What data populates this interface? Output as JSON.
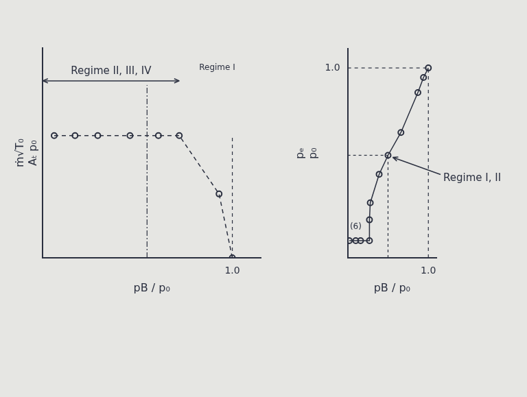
{
  "chart_data": [
    {
      "type": "line",
      "x_label": "pB / p₀",
      "y_label": [
        "ṁ√T₀",
        "Aₜ p₀"
      ],
      "x": [
        0.06,
        0.17,
        0.29,
        0.46,
        0.61,
        0.72,
        0.93,
        1.0
      ],
      "values": [
        0.67,
        0.67,
        0.67,
        0.67,
        0.67,
        0.67,
        0.35,
        0.0
      ],
      "color": "#2b3040",
      "marker": "circle",
      "line_style": "dashed",
      "xlim": [
        0,
        1.15
      ],
      "ylim": [
        0,
        1.15
      ],
      "xticks": [
        {
          "value": 1,
          "label": "1.0"
        }
      ],
      "yticks": [],
      "tick_labels": "x",
      "grid": false,
      "boundary_x": 0.55,
      "annotations": [
        {
          "text": "Regime II, III, IV",
          "span": [
            0,
            0.72
          ],
          "y": 0.97
        },
        {
          "text": "Regime I",
          "x": 0.92,
          "y": 1.02
        }
      ]
    },
    {
      "type": "line",
      "x_label": "pB / p₀",
      "y_label": [
        "pₑ",
        "p₀"
      ],
      "x": [
        0.02,
        0.1,
        0.16,
        0.27,
        0.27,
        0.28,
        0.39,
        0.5,
        0.66,
        0.87,
        0.94,
        1.0
      ],
      "values": [
        0.09,
        0.09,
        0.09,
        0.09,
        0.2,
        0.29,
        0.44,
        0.54,
        0.66,
        0.87,
        0.95,
        1.0
      ],
      "color": "#2b3040",
      "marker": "circle",
      "line_style": "solid",
      "xlim": [
        0,
        1.1
      ],
      "ylim": [
        0,
        1.1
      ],
      "xticks": [
        {
          "value": 1,
          "label": "1.0"
        }
      ],
      "yticks": [
        {
          "value": 1,
          "label": "1.0"
        }
      ],
      "tick_labels": true,
      "grid": false,
      "annotations": [
        {
          "text": "Regime I, II",
          "target": [
            0.5,
            0.54
          ]
        },
        {
          "text": "(6)",
          "x": 0.1,
          "y": 0.14
        }
      ]
    }
  ]
}
